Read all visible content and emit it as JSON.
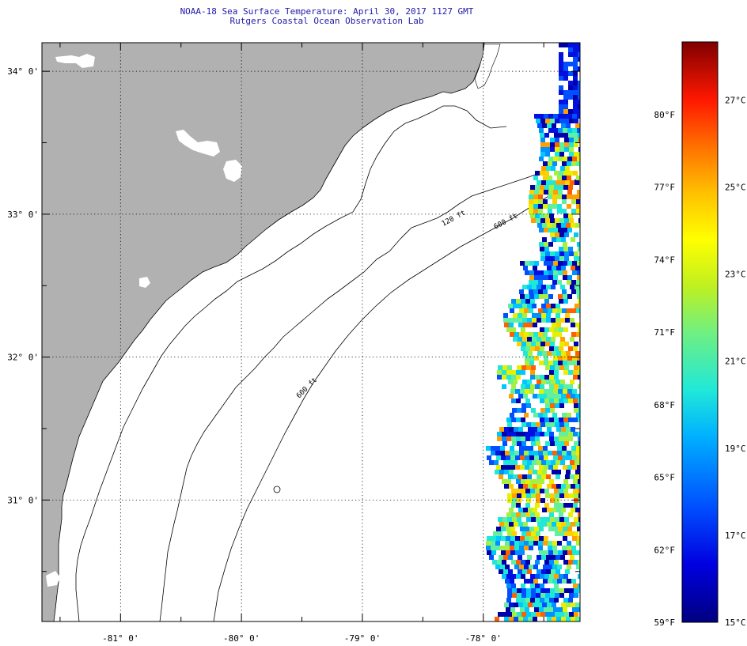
{
  "header": {
    "title_line1": "NOAA-18 Sea Surface Temperature:  April 30, 2017 1127 GMT",
    "title_line2": "Rutgers Coastal Ocean Observation Lab"
  },
  "map": {
    "lon_range": [
      -81.65,
      -77.2
    ],
    "lat_range": [
      30.15,
      34.2
    ],
    "lat_labels": [
      {
        "lat": 34,
        "text": "34° 0'"
      },
      {
        "lat": 33,
        "text": "33° 0'"
      },
      {
        "lat": 32,
        "text": "32° 0'"
      },
      {
        "lat": 31,
        "text": "31° 0'"
      }
    ],
    "lon_labels": [
      {
        "lon": -81,
        "text": "-81° 0'"
      },
      {
        "lon": -80,
        "text": "-80° 0'"
      },
      {
        "lon": -79,
        "text": "-79° 0'"
      },
      {
        "lon": -78,
        "text": "-78° 0'"
      }
    ],
    "contour_labels": [
      "120 ft",
      "600 ft",
      "600 ft"
    ],
    "colors": {
      "land": "#b1b1b1",
      "ocean": "#ffffff",
      "grid": "#000000"
    }
  },
  "colorbar": {
    "f_labels": [
      "80°F",
      "77°F",
      "74°F",
      "71°F",
      "68°F",
      "65°F",
      "62°F",
      "59°F"
    ],
    "c_labels": [
      "27°C",
      "25°C",
      "23°C",
      "21°C",
      "19°C",
      "17°C",
      "15°C"
    ],
    "f_values": [
      80,
      77,
      74,
      71,
      68,
      65,
      62,
      59
    ],
    "c_values": [
      27,
      25,
      23,
      21,
      19,
      17,
      15
    ],
    "range_f": [
      59,
      83
    ]
  }
}
